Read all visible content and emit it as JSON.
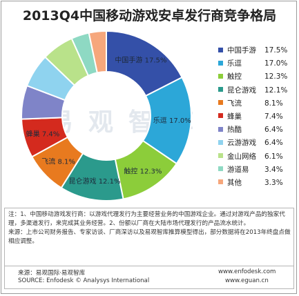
{
  "title": "2013Q4中国移动游戏安卓发行商竞争格局",
  "watermark": "易观智库",
  "chart_data": {
    "type": "pie",
    "donut": true,
    "title": "2013Q4中国移动游戏安卓发行商竞争格局",
    "legend_position": "right",
    "slices": [
      {
        "name": "中国手游",
        "value": 17.5,
        "label": "17.5%",
        "color": "#3450a8"
      },
      {
        "name": "乐逗",
        "value": 17.0,
        "label": "17.0%",
        "color": "#2ca7d8"
      },
      {
        "name": "触控",
        "value": 12.3,
        "label": "12.3%",
        "color": "#8ccd3a"
      },
      {
        "name": "昆仑游戏",
        "value": 12.1,
        "label": "12.1%",
        "color": "#2b9a8c"
      },
      {
        "name": "飞流",
        "value": 8.1,
        "label": "8.1%",
        "color": "#e87a1f"
      },
      {
        "name": "蜂巢",
        "value": 7.4,
        "label": "7.4%",
        "color": "#d42a1e"
      },
      {
        "name": "热酷",
        "value": 6.4,
        "label": "6.4%",
        "color": "#7f84c8"
      },
      {
        "name": "云游游戏",
        "value": 6.4,
        "label": "6.4%",
        "color": "#8fd3ef"
      },
      {
        "name": "金山网络",
        "value": 6.1,
        "label": "6.1%",
        "color": "#b9e28a"
      },
      {
        "name": "游道易",
        "value": 3.4,
        "label": "3.4%",
        "color": "#8ed9c3"
      },
      {
        "name": "其他",
        "value": 3.3,
        "label": "3.3%",
        "color": "#f6a77c"
      }
    ],
    "slice_labels": [
      {
        "name": "中国手游",
        "label": "17.5%"
      },
      {
        "name": "乐逗",
        "label": "17.0%"
      },
      {
        "name": "触控",
        "label": "12.3%"
      },
      {
        "name": "昆仑游戏",
        "label": "12.1%"
      },
      {
        "name": "飞流",
        "label": "8.1%"
      },
      {
        "name": "蜂巢",
        "label": "7.4%"
      }
    ]
  },
  "notes": {
    "line1": "注：1、中国移动游戏发行商：以游戏代理发行为主要经营业务的中国游戏企业。通过对游戏产品的独家代理，多渠道发行，来完成其业务经营。2、份额以厂商在大陆市场代理发行的产品流水统计。",
    "line2": "来源：上市公司财务报告、专家访谈、厂商深访以及易观智库推算模型得出，部分数据将在2013年终盘点做相应调整。"
  },
  "footer": {
    "source_cn": "来源：易观国际·易观智库",
    "source_en": "SOURCE: Enfodesk © Analysys International",
    "url1": "www.enfodesk.com",
    "url2": "www.eguan.cn"
  }
}
